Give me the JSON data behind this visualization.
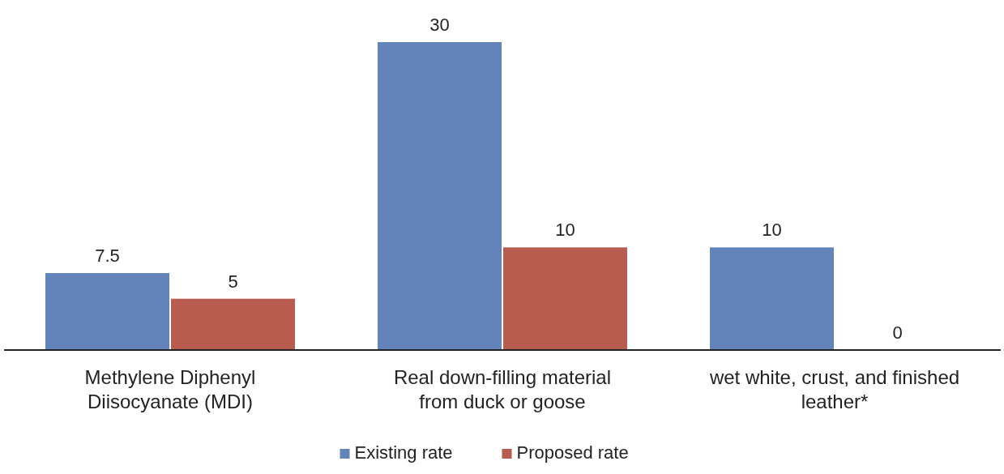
{
  "chart_data": {
    "type": "bar",
    "categories": [
      "Methylene Diphenyl Diisocyanate (MDI)",
      "Real down-filling material from duck or goose",
      "wet white, crust, and finished leather*"
    ],
    "series": [
      {
        "name": "Existing rate",
        "color": "#6384bb",
        "values": [
          7.5,
          30,
          10
        ]
      },
      {
        "name": "Proposed rate",
        "color": "#b85c50",
        "values": [
          5,
          10,
          0
        ]
      }
    ],
    "data_labels": true,
    "legend": "bottom"
  }
}
